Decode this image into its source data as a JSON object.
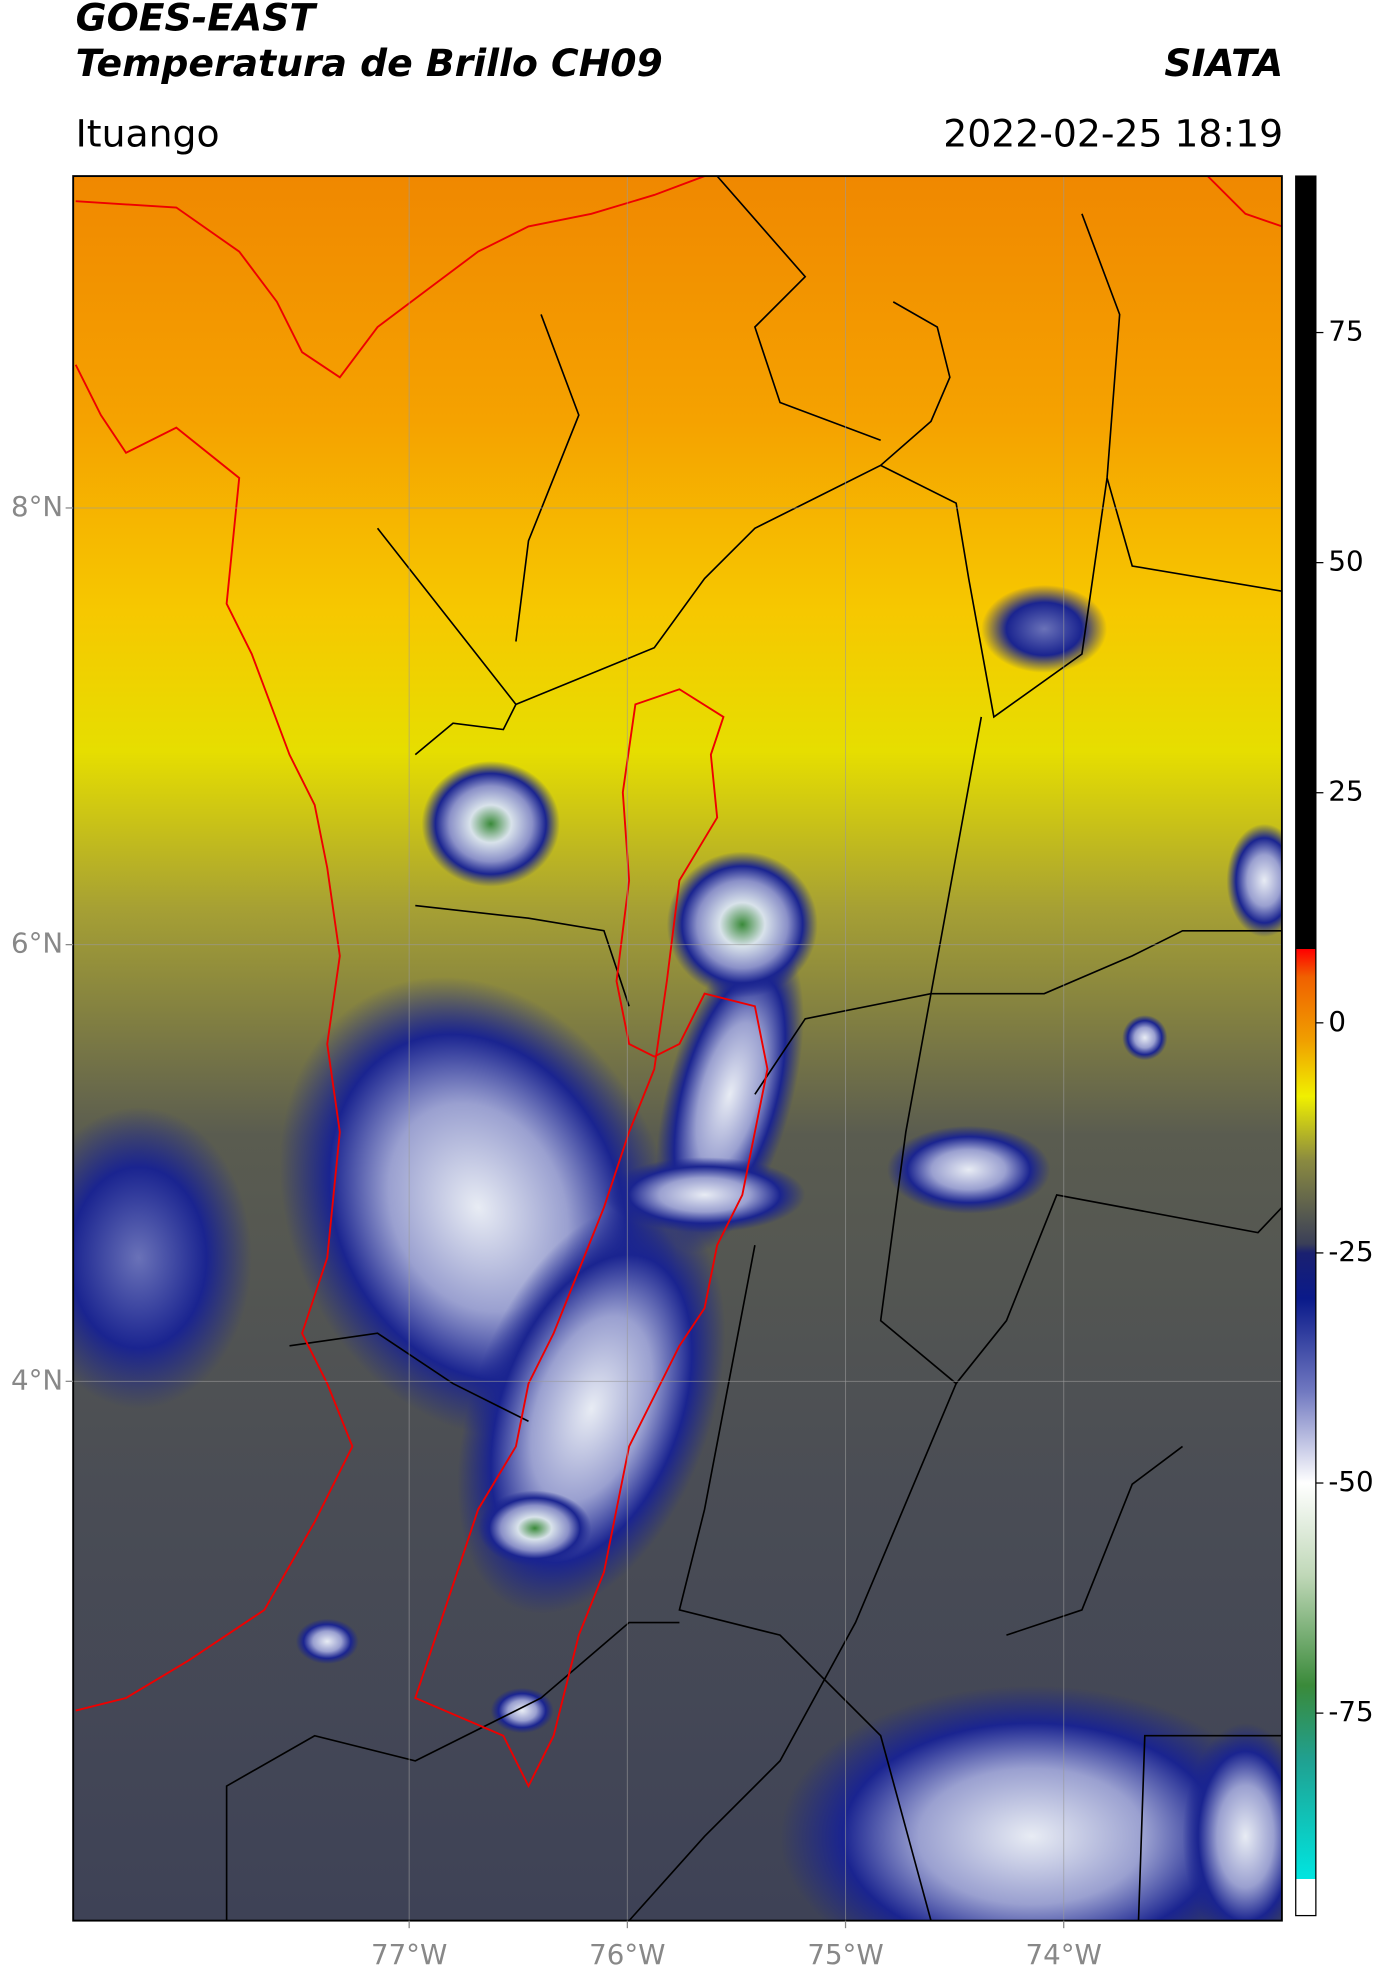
{
  "header": {
    "title": "GOES-EAST",
    "subtitle": "Temperatura de Brillo CH09",
    "source": "SIATA",
    "location": "Ituango",
    "timestamp": "2022-02-25 18:19"
  },
  "map": {
    "xlim": [
      -78.54,
      -73.0
    ],
    "ylim": [
      1.53,
      9.52
    ],
    "xticks": [
      {
        "value": -77,
        "label": "77°W"
      },
      {
        "value": -76,
        "label": "76°W"
      },
      {
        "value": -75,
        "label": "75°W"
      },
      {
        "value": -74,
        "label": "74°W"
      }
    ],
    "yticks": [
      {
        "value": 8,
        "label": "8°N"
      },
      {
        "value": 6,
        "label": "6°N"
      },
      {
        "value": 4,
        "label": "4°N"
      }
    ],
    "grid": true
  },
  "colorbar": {
    "range": [
      -97,
      92
    ],
    "ticks": [
      75,
      50,
      25,
      0,
      -25,
      -50,
      -75
    ],
    "stops": [
      {
        "value": -97,
        "color": "#ffffff"
      },
      {
        "value": -93,
        "color": "#ffffff"
      },
      {
        "value": -93,
        "color": "#00e5e0"
      },
      {
        "value": -80,
        "color": "#20a090"
      },
      {
        "value": -72,
        "color": "#3a8a3a"
      },
      {
        "value": -60,
        "color": "#c0d8b8"
      },
      {
        "value": -50,
        "color": "#ffffff"
      },
      {
        "value": -40,
        "color": "#7078c0"
      },
      {
        "value": -30,
        "color": "#0a1a8a"
      },
      {
        "value": -25,
        "color": "#1a2070"
      },
      {
        "value": -24,
        "color": "#3a3f58"
      },
      {
        "value": -15,
        "color": "#8a8a40"
      },
      {
        "value": -8,
        "color": "#f0f000"
      },
      {
        "value": -2,
        "color": "#f0a000"
      },
      {
        "value": 5,
        "color": "#f06000"
      },
      {
        "value": 8,
        "color": "#ff0000"
      },
      {
        "value": 8,
        "color": "#000000"
      },
      {
        "value": 92,
        "color": "#000000"
      }
    ]
  }
}
